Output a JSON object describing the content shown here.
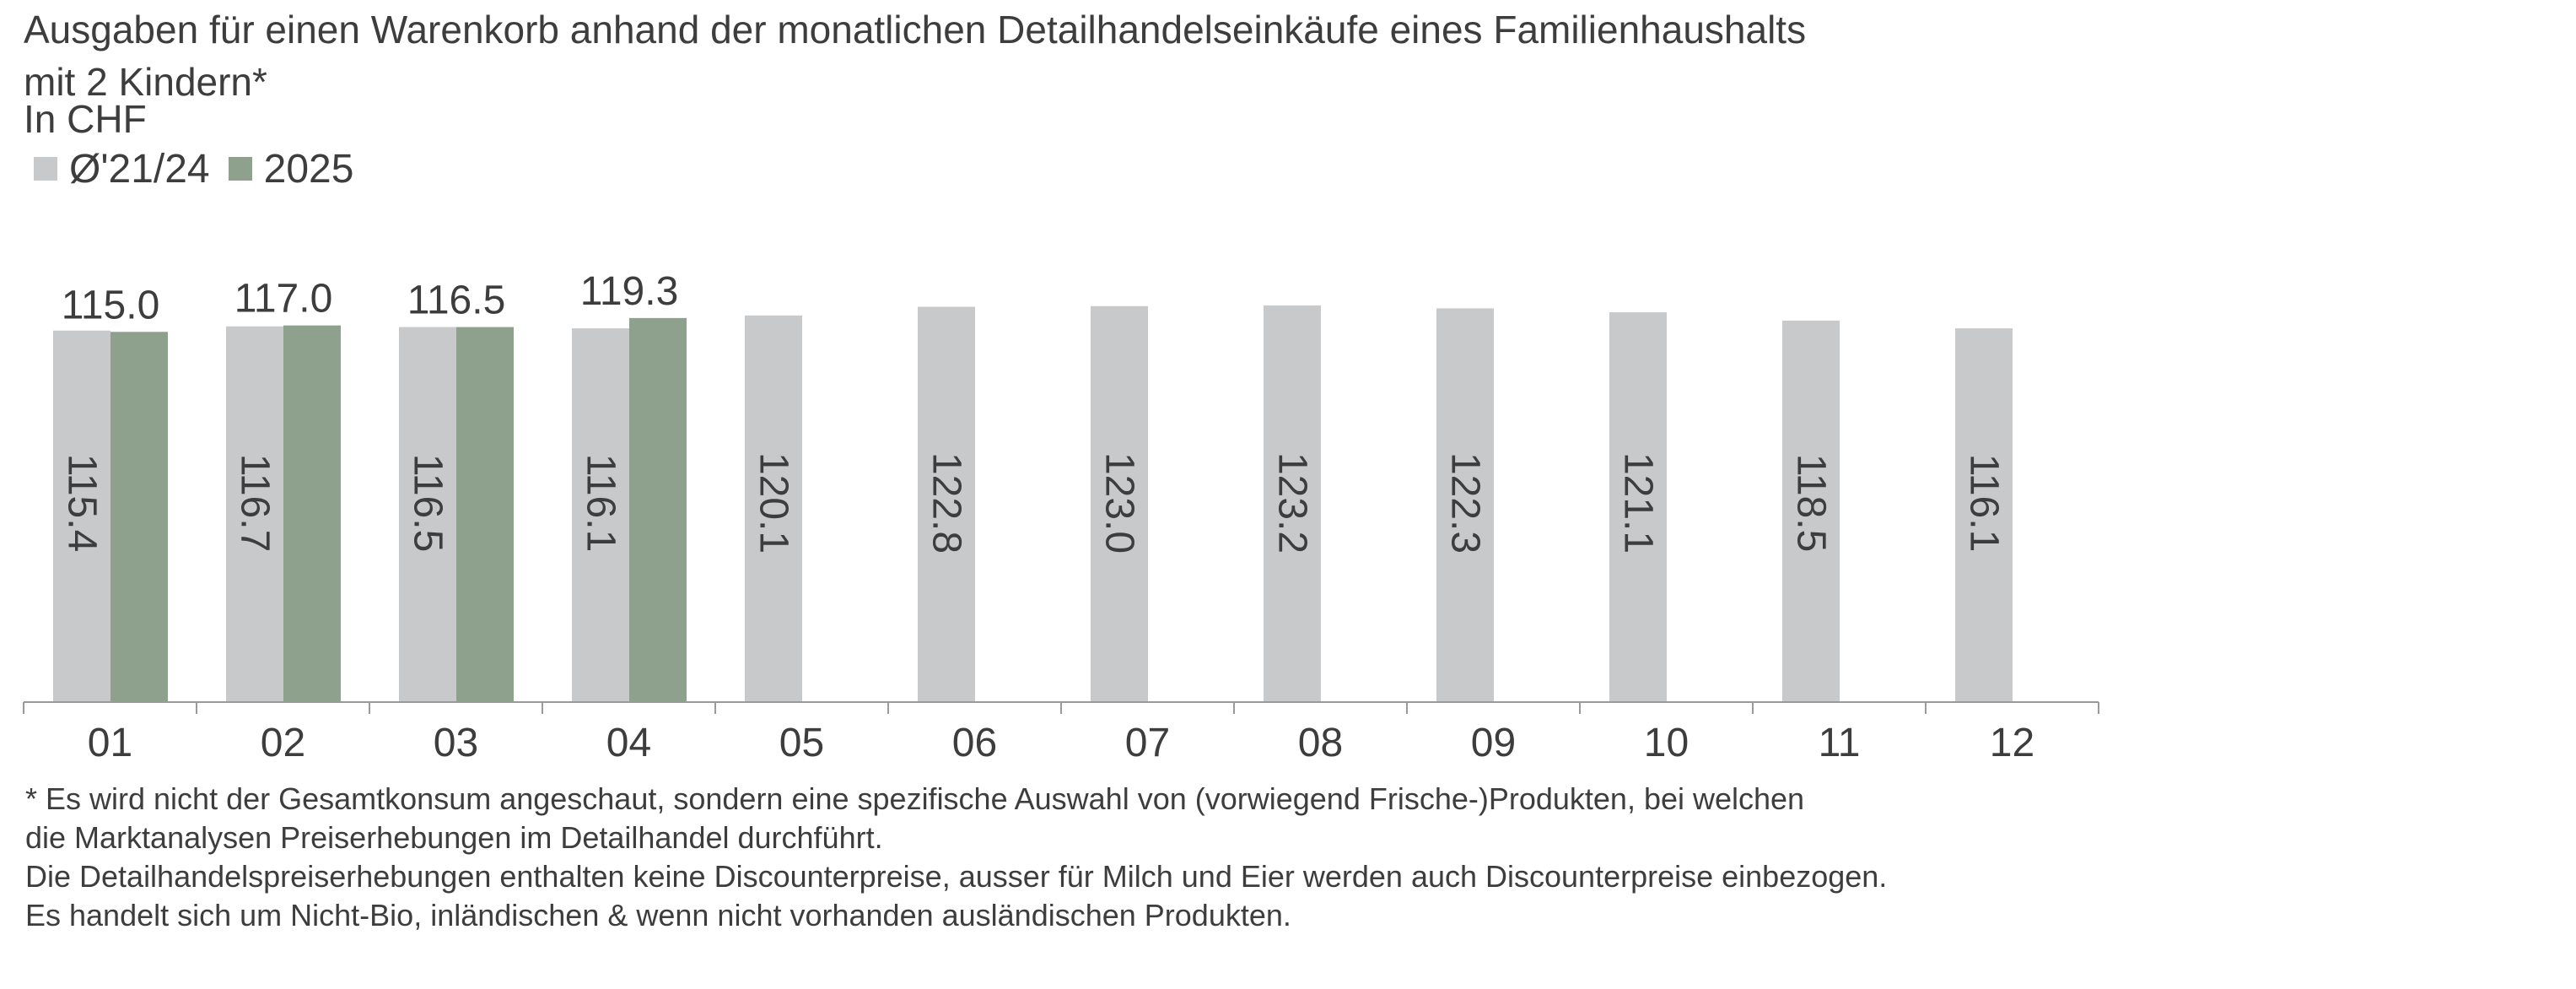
{
  "title_line1": "Ausgaben für einen Warenkorb anhand der monatlichen Detailhandelseinkäufe eines Familienhaushalts",
  "title_line2": "mit 2 Kindern*",
  "subtitle": "In CHF",
  "legend": [
    {
      "label": "Ø'21/24",
      "color": "#c8c9cb"
    },
    {
      "label": "2025",
      "color": "#8ea18c"
    }
  ],
  "chart_data": {
    "type": "bar",
    "title": "Ausgaben für einen Warenkorb anhand der monatlichen Detailhandelseinkäufe eines Familienhaushalts mit 2 Kindern*",
    "ylabel": "In CHF",
    "xlabel": "",
    "categories": [
      "01",
      "02",
      "03",
      "04",
      "05",
      "06",
      "07",
      "08",
      "09",
      "10",
      "11",
      "12"
    ],
    "series": [
      {
        "name": "Ø'21/24",
        "color": "#c8c9cb",
        "values": [
          115.4,
          116.7,
          116.5,
          116.1,
          120.1,
          122.8,
          123.0,
          123.2,
          122.3,
          121.1,
          118.5,
          116.1
        ],
        "labels": [
          "115.4",
          "116.7",
          "116.5",
          "116.1",
          "120.1",
          "122.8",
          "123.0",
          "123.2",
          "122.3",
          "121.1",
          "118.5",
          "116.1"
        ],
        "label_position": "inside-rotated"
      },
      {
        "name": "2025",
        "color": "#8ea18c",
        "values": [
          115.0,
          117.0,
          116.5,
          119.3,
          null,
          null,
          null,
          null,
          null,
          null,
          null,
          null
        ],
        "labels": [
          "115.0",
          "117.0",
          "116.5",
          "119.3",
          null,
          null,
          null,
          null,
          null,
          null,
          null,
          null
        ],
        "label_position": "above"
      }
    ],
    "ylim": [
      0,
      123.2
    ],
    "grid": false,
    "legend_position": "top-left"
  },
  "footnote": [
    "* Es wird nicht der Gesamtkonsum angeschaut, sondern eine spezifische Auswahl von (vorwiegend Frische-)Produkten, bei welchen",
    "die Marktanalysen Preiserhebungen im Detailhandel durchführt.",
    "Die Detailhandelspreiserhebungen enthalten keine Discounterpreise, ausser für Milch und Eier werden auch Discounterpreise einbezogen.",
    "Es handelt sich um Nicht-Bio, inländischen & wenn nicht vorhanden ausländischen Produkten."
  ]
}
